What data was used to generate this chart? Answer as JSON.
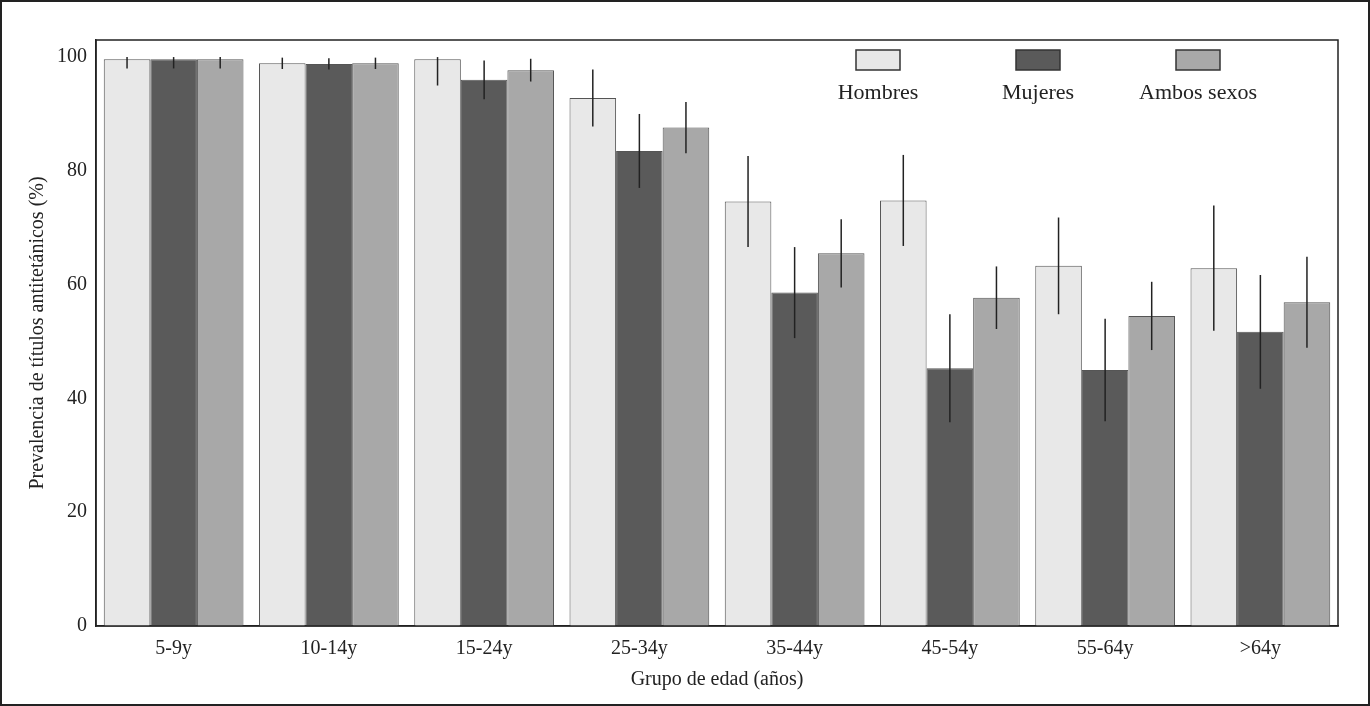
{
  "chart_data": {
    "type": "bar",
    "xlabel": "Grupo de edad (años)",
    "ylabel": "Prevalencia de títulos antitetánicos (%)",
    "categories": [
      "5-9y",
      "10-14y",
      "15-24y",
      "25-34y",
      "35-44y",
      "45-54y",
      "55-64y",
      ">64y"
    ],
    "series": [
      {
        "name": "Hombres",
        "color": "#e8e8e8",
        "values": [
          99.6,
          98.9,
          99.6,
          92.8,
          74.6,
          74.8,
          63.3,
          62.9
        ],
        "errors": [
          [
            98,
            100
          ],
          1,
          [
            95,
            100
          ],
          5,
          8,
          8,
          8.5,
          11
        ]
      },
      {
        "name": "Mujeres",
        "color": "#5a5a5a",
        "values": [
          99.6,
          98.8,
          96,
          83.5,
          58.6,
          45.3,
          45,
          51.7
        ],
        "errors": [
          [
            98,
            100
          ],
          1,
          3.4,
          6.5,
          8,
          9.5,
          9,
          10
        ]
      },
      {
        "name": "Ambos sexos",
        "color": "#a8a8a8",
        "values": [
          99.6,
          98.9,
          97.7,
          87.6,
          65.5,
          57.7,
          54.5,
          56.9
        ],
        "errors": [
          [
            98,
            100
          ],
          1,
          2,
          4.5,
          6,
          5.5,
          6,
          8
        ]
      }
    ],
    "ylim": [
      0,
      103
    ],
    "yticks": [
      0,
      20,
      40,
      60,
      80,
      100
    ],
    "grid": false,
    "legend": "top right"
  }
}
